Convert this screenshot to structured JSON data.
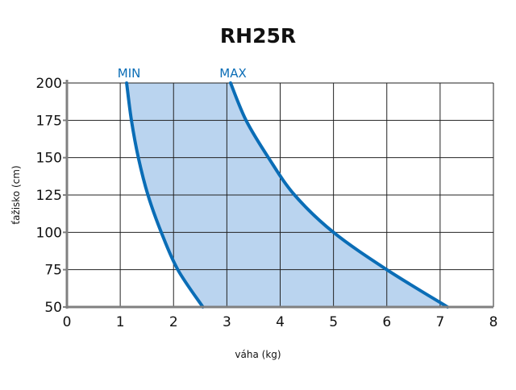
{
  "chart_data": {
    "type": "area",
    "title": "RH25R",
    "xlabel": "váha (kg)",
    "ylabel": "ťažisko (cm)",
    "xlim": [
      0,
      8
    ],
    "ylim": [
      50,
      200
    ],
    "xticks": [
      0,
      1,
      2,
      3,
      4,
      5,
      6,
      7,
      8
    ],
    "yticks": [
      50,
      75,
      100,
      125,
      150,
      175,
      200
    ],
    "grid": true,
    "series": [
      {
        "name": "MIN",
        "x": [
          1.12,
          1.21,
          1.34,
          1.52,
          1.77,
          2.08,
          2.55
        ],
        "y": [
          200,
          175,
          150,
          125,
          100,
          75,
          50
        ]
      },
      {
        "name": "MAX",
        "x": [
          3.07,
          3.36,
          3.78,
          4.27,
          5.0,
          6.0,
          7.14
        ],
        "y": [
          200,
          175,
          150,
          125,
          100,
          75,
          50
        ]
      }
    ],
    "colors": {
      "line": "#0a6db6",
      "fill": "#bad4ef",
      "grid": "#222222",
      "axis": "#808080",
      "title": "#111111"
    }
  }
}
